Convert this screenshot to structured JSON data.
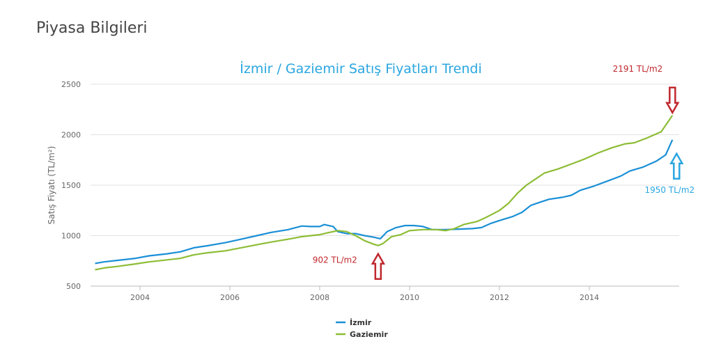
{
  "page": {
    "title": "Piyasa Bilgileri"
  },
  "colors": {
    "izmir": "#1a8fd6",
    "gaziemir": "#8dbd35",
    "marker_red": "#c0272d",
    "marker_blue": "#2aa6e0",
    "title": "#2aa6e0"
  },
  "chart_data": {
    "type": "line",
    "title": "İzmir / Gaziemir Satış Fiyatları Trendi",
    "xlabel": "",
    "ylabel": "Satış Fiyatı (TL/m²)",
    "ylim": [
      500,
      2500
    ],
    "xlim": [
      2002.9,
      2016.0
    ],
    "x_ticks": [
      2004,
      2006,
      2008,
      2010,
      2012,
      2014
    ],
    "y_ticks": [
      500,
      1000,
      1500,
      2000,
      2500
    ],
    "grid": "horizontal",
    "legend": "bottom-center",
    "series": [
      {
        "name": "İzmir",
        "color": "#1a8fd6",
        "points": [
          [
            2003.0,
            725
          ],
          [
            2003.2,
            740
          ],
          [
            2003.5,
            755
          ],
          [
            2003.9,
            775
          ],
          [
            2004.2,
            800
          ],
          [
            2004.6,
            820
          ],
          [
            2004.9,
            840
          ],
          [
            2005.2,
            880
          ],
          [
            2005.5,
            900
          ],
          [
            2005.9,
            930
          ],
          [
            2006.2,
            960
          ],
          [
            2006.6,
            1000
          ],
          [
            2006.9,
            1030
          ],
          [
            2007.3,
            1060
          ],
          [
            2007.6,
            1095
          ],
          [
            2007.8,
            1090
          ],
          [
            2008.0,
            1090
          ],
          [
            2008.1,
            1110
          ],
          [
            2008.3,
            1090
          ],
          [
            2008.4,
            1040
          ],
          [
            2008.6,
            1020
          ],
          [
            2008.8,
            1020
          ],
          [
            2009.0,
            1000
          ],
          [
            2009.2,
            985
          ],
          [
            2009.35,
            970
          ],
          [
            2009.5,
            1040
          ],
          [
            2009.7,
            1080
          ],
          [
            2009.9,
            1100
          ],
          [
            2010.1,
            1100
          ],
          [
            2010.3,
            1090
          ],
          [
            2010.5,
            1060
          ],
          [
            2010.8,
            1060
          ],
          [
            2011.1,
            1065
          ],
          [
            2011.4,
            1070
          ],
          [
            2011.6,
            1080
          ],
          [
            2011.8,
            1120
          ],
          [
            2012.0,
            1150
          ],
          [
            2012.3,
            1190
          ],
          [
            2012.5,
            1230
          ],
          [
            2012.7,
            1300
          ],
          [
            2012.9,
            1330
          ],
          [
            2013.1,
            1360
          ],
          [
            2013.4,
            1380
          ],
          [
            2013.6,
            1400
          ],
          [
            2013.8,
            1450
          ],
          [
            2014.1,
            1490
          ],
          [
            2014.4,
            1540
          ],
          [
            2014.7,
            1590
          ],
          [
            2014.9,
            1640
          ],
          [
            2015.2,
            1680
          ],
          [
            2015.5,
            1740
          ],
          [
            2015.7,
            1800
          ],
          [
            2015.85,
            1950
          ]
        ]
      },
      {
        "name": "Gaziemir",
        "color": "#8dbd35",
        "points": [
          [
            2003.0,
            662
          ],
          [
            2003.2,
            680
          ],
          [
            2003.5,
            695
          ],
          [
            2003.9,
            720
          ],
          [
            2004.2,
            740
          ],
          [
            2004.6,
            760
          ],
          [
            2004.9,
            775
          ],
          [
            2005.2,
            810
          ],
          [
            2005.5,
            830
          ],
          [
            2005.9,
            850
          ],
          [
            2006.2,
            875
          ],
          [
            2006.6,
            910
          ],
          [
            2006.9,
            935
          ],
          [
            2007.3,
            965
          ],
          [
            2007.6,
            990
          ],
          [
            2007.8,
            1000
          ],
          [
            2008.0,
            1010
          ],
          [
            2008.2,
            1030
          ],
          [
            2008.4,
            1050
          ],
          [
            2008.6,
            1040
          ],
          [
            2008.8,
            1000
          ],
          [
            2009.0,
            950
          ],
          [
            2009.2,
            915
          ],
          [
            2009.3,
            902
          ],
          [
            2009.4,
            920
          ],
          [
            2009.6,
            990
          ],
          [
            2009.8,
            1010
          ],
          [
            2010.0,
            1050
          ],
          [
            2010.3,
            1060
          ],
          [
            2010.6,
            1060
          ],
          [
            2010.8,
            1050
          ],
          [
            2011.0,
            1070
          ],
          [
            2011.2,
            1110
          ],
          [
            2011.5,
            1140
          ],
          [
            2011.7,
            1180
          ],
          [
            2012.0,
            1250
          ],
          [
            2012.2,
            1320
          ],
          [
            2012.4,
            1420
          ],
          [
            2012.6,
            1500
          ],
          [
            2012.8,
            1560
          ],
          [
            2013.0,
            1620
          ],
          [
            2013.3,
            1660
          ],
          [
            2013.6,
            1710
          ],
          [
            2013.9,
            1760
          ],
          [
            2014.2,
            1820
          ],
          [
            2014.5,
            1870
          ],
          [
            2014.8,
            1910
          ],
          [
            2015.0,
            1920
          ],
          [
            2015.3,
            1970
          ],
          [
            2015.6,
            2030
          ],
          [
            2015.85,
            2191
          ]
        ]
      }
    ],
    "annotations": [
      {
        "text": "2191 TL/m2",
        "x": 2015.85,
        "y": 2191,
        "color": "#c0272d",
        "arrow": "down"
      },
      {
        "text": "1950 TL/m2",
        "x": 2015.85,
        "y": 1950,
        "color": "#2aa6e0",
        "arrow": "up"
      },
      {
        "text": "902 TL/m2",
        "x": 2009.3,
        "y": 902,
        "color": "#c0272d",
        "arrow": "up"
      }
    ]
  }
}
